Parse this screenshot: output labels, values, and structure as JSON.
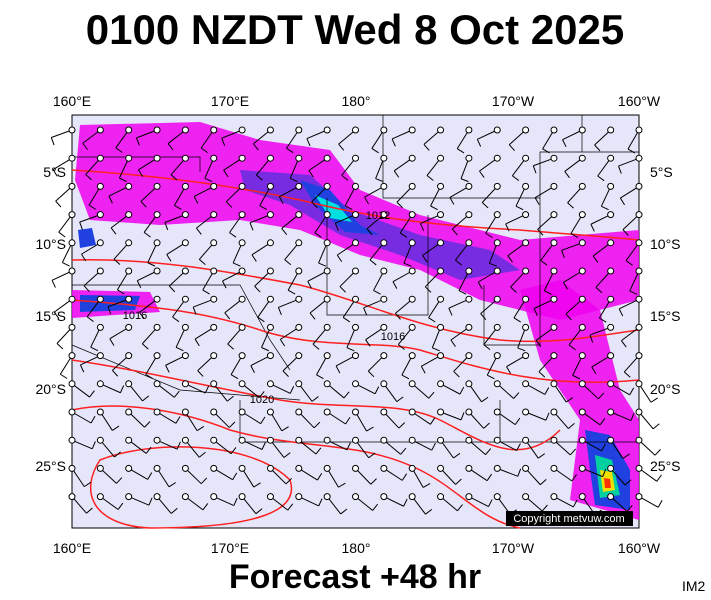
{
  "header": {
    "title": "0100 NZDT Wed 8 Oct 2025"
  },
  "map": {
    "lon_labels": [
      "160°E",
      "170°E",
      "180°",
      "170°W",
      "160°W"
    ],
    "lat_labels": [
      "5°S",
      "10°S",
      "15°S",
      "20°S",
      "25°S"
    ],
    "isobar_labels": [
      "1012",
      "1016",
      "1016",
      "1020"
    ],
    "copyright": "Copyright metvuw.com"
  },
  "footer": {
    "caption": "Forecast +48 hr",
    "code": "IM2"
  }
}
